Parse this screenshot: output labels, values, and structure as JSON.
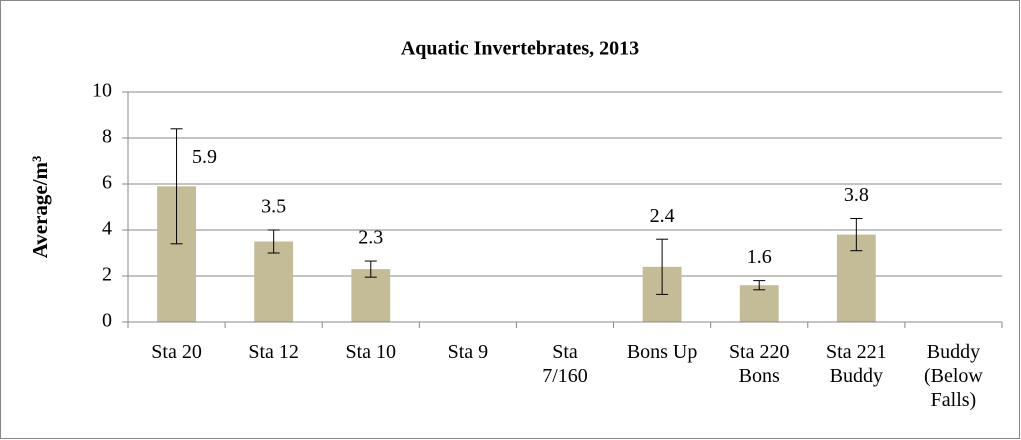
{
  "chart_data": {
    "type": "bar",
    "title": "Aquatic Invertebrates, 2013",
    "y_label": "Average/m³",
    "categories": [
      "Sta 20",
      "Sta 12",
      "Sta 10",
      "Sta 9",
      "Sta 7/160",
      "Bons Up",
      "Sta 220 Bons",
      "Sta 221 Buddy",
      "Buddy (Below Falls)"
    ],
    "values": [
      5.9,
      3.5,
      2.3,
      null,
      null,
      2.4,
      1.6,
      3.8,
      null
    ],
    "errors": [
      2.5,
      0.5,
      0.35,
      null,
      null,
      1.2,
      0.2,
      0.7,
      null
    ],
    "color": "#c4bc96",
    "ylim": [
      0,
      10
    ],
    "yticks": [
      0,
      2,
      4,
      6,
      8,
      10
    ],
    "grid": true
  }
}
